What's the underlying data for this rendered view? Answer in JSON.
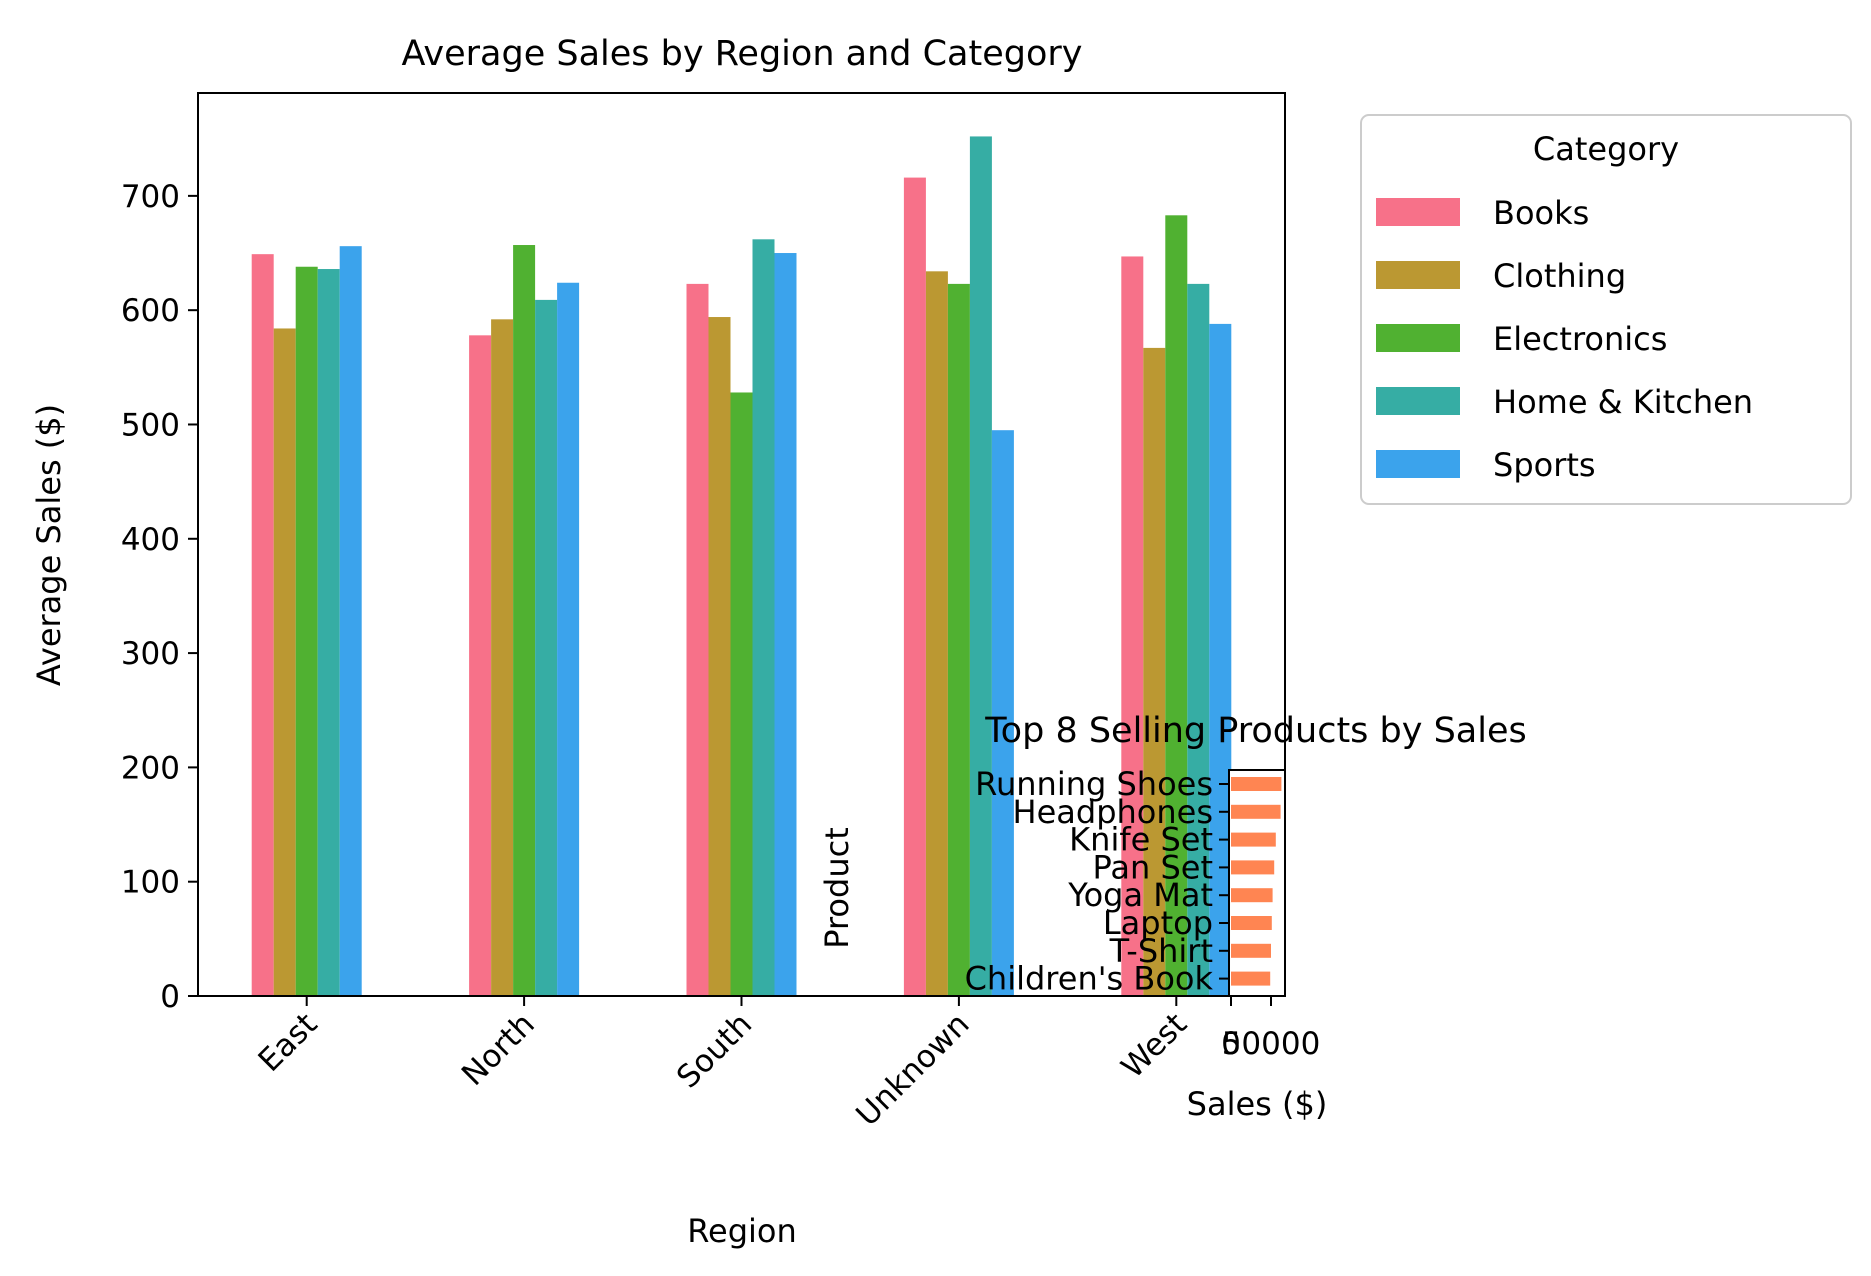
{
  "chart_data": [
    {
      "type": "bar",
      "title": "Average Sales by Region and Category",
      "xlabel": "Region",
      "ylabel": "Average Sales ($)",
      "ylim": [
        0,
        790
      ],
      "yticks": [
        0,
        100,
        200,
        300,
        400,
        500,
        600,
        700
      ],
      "categories": [
        "East",
        "North",
        "South",
        "Unknown",
        "West"
      ],
      "legend_title": "Category",
      "legend_position": "outside-right-top",
      "colors": [
        "#f77189",
        "#bb9832",
        "#50b131",
        "#36ada4",
        "#3ba3ec"
      ],
      "series": [
        {
          "name": "Books",
          "values": [
            649,
            578,
            623,
            716,
            647
          ]
        },
        {
          "name": "Clothing",
          "values": [
            584,
            592,
            594,
            634,
            567
          ]
        },
        {
          "name": "Electronics",
          "values": [
            638,
            657,
            528,
            623,
            683
          ]
        },
        {
          "name": "Home & Kitchen",
          "values": [
            636,
            609,
            662,
            752,
            623
          ]
        },
        {
          "name": "Sports",
          "values": [
            656,
            624,
            650,
            495,
            588
          ]
        }
      ],
      "grid": false
    },
    {
      "type": "bar",
      "orientation": "horizontal",
      "title": "Top 8 Selling Products by Sales",
      "xlabel": "Sales ($)",
      "ylabel": "Product",
      "xlim": [
        0,
        65000
      ],
      "xticks": [
        0,
        50000
      ],
      "xtick_labels": [
        "0",
        "50000"
      ],
      "categories": [
        "Running Shoes",
        "Headphones",
        "Knife Set",
        "Pan Set",
        "Yoga Mat",
        "Laptop",
        "T-Shirt",
        "Children's Book"
      ],
      "values": [
        63000,
        62000,
        56000,
        54000,
        52000,
        51000,
        50000,
        49000
      ],
      "color": "#ff8552",
      "grid": false
    }
  ]
}
